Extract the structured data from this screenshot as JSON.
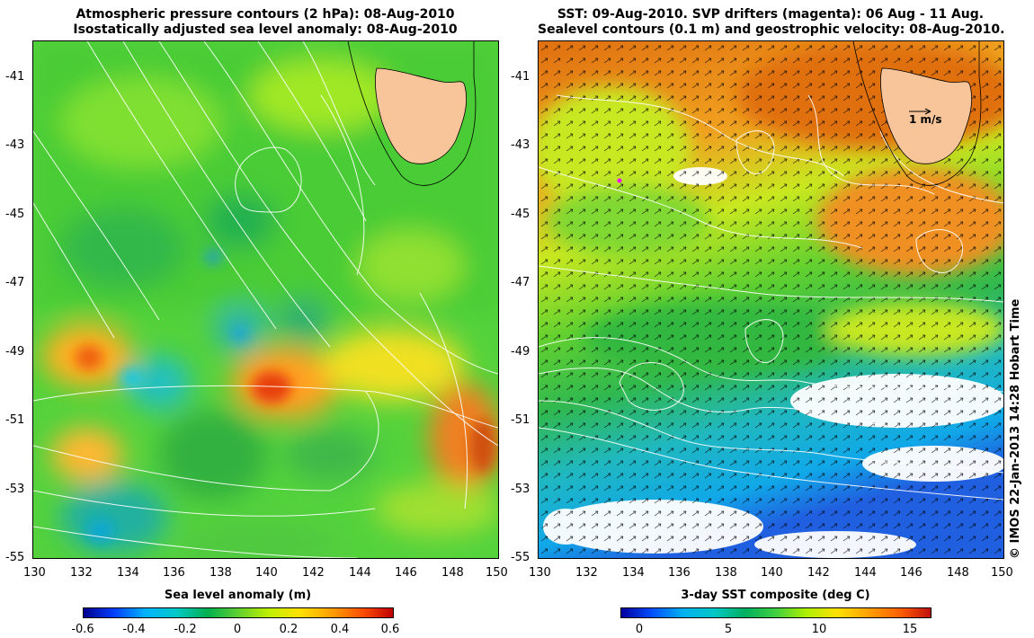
{
  "left_panel": {
    "title_line1": "Atmospheric pressure contours (2 hPa): 08-Aug-2010",
    "title_line2": "Isostatically adjusted sea level anomaly: 08-Aug-2010",
    "colorbar_title": "Sea level anomaly (m)",
    "colorbar_ticks": [
      "-0.6",
      "-0.4",
      "-0.2",
      "0",
      "0.2",
      "0.4",
      "0.6"
    ]
  },
  "right_panel": {
    "title_line1": "SST: 09-Aug-2010. SVP drifters (magenta): 06 Aug - 11 Aug.",
    "title_line2": "Sealevel contours (0.1 m) and geostrophic velocity: 08-Aug-2010.",
    "colorbar_title": "3-day SST composite (deg C)",
    "colorbar_ticks": [
      "0",
      "5",
      "10",
      "15"
    ],
    "scale_arrow_label": "1 m/s"
  },
  "axes": {
    "lat_labels": [
      "-41",
      "-43",
      "-45",
      "-47",
      "-49",
      "-51",
      "-53",
      "-55"
    ],
    "lon_labels": [
      "130",
      "132",
      "134",
      "136",
      "138",
      "140",
      "142",
      "144",
      "146",
      "148",
      "150"
    ]
  },
  "credit": "© IMOS 22-Jan-2013 14:28 Hobart Time",
  "colors": {
    "land": "#f8c49a",
    "slam_gradient": [
      "#000080",
      "#0050ff",
      "#00c8ff",
      "#00b050",
      "#40d040",
      "#a0f000",
      "#ffff00",
      "#ffa000",
      "#ff4000",
      "#c00000"
    ],
    "sst_gradient": [
      "#0000a0",
      "#0060ff",
      "#00c8ff",
      "#00c080",
      "#40d040",
      "#c0f000",
      "#ffd000",
      "#ff8000",
      "#e05000",
      "#c01010"
    ],
    "drifter": "#ff00ff"
  }
}
